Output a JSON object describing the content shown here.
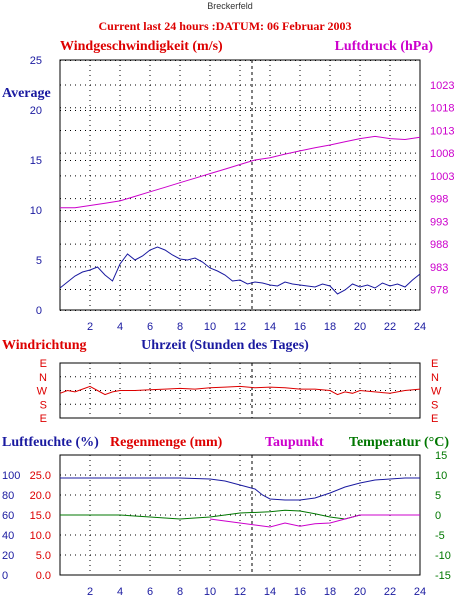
{
  "site": "Breckerfeld",
  "header": "Current last 24 hours :DATUM: 06 Februar 2003",
  "colors": {
    "red": "#dd0000",
    "blue": "#1a1aa0",
    "magenta": "#cc00cc",
    "green": "#007700",
    "grid": "#000000"
  },
  "chart_data": [
    {
      "type": "line",
      "title": "Windgeschwindigkeit (m/s)",
      "left_axis_label": "Windgeschwindigkeit (m/s)",
      "right_axis_label": "Luftdruck (hPa)",
      "average_label": "Average",
      "xlim": [
        0,
        24
      ],
      "x_ticks": [
        2,
        4,
        6,
        8,
        10,
        12,
        14,
        16,
        18,
        20,
        22,
        24
      ],
      "y_left_ticks": [
        0,
        5,
        10,
        15,
        20,
        25
      ],
      "y_left_lim": [
        0,
        25
      ],
      "y_right_ticks": [
        978,
        983,
        988,
        993,
        998,
        1003,
        1008,
        1013,
        1018,
        1023
      ],
      "y_right_lim": [
        973.5,
        1028.5
      ],
      "marker_x": 12.8,
      "series": [
        {
          "name": "Windgeschwindigkeit (m/s)",
          "axis": "left",
          "color": "#1a1aa0",
          "x": [
            0,
            0.5,
            1,
            1.5,
            2,
            2.5,
            3,
            3.5,
            4,
            4.5,
            5,
            5.5,
            6,
            6.5,
            7,
            7.5,
            8,
            8.5,
            9,
            9.5,
            10,
            10.5,
            11,
            11.5,
            12,
            12.5,
            13,
            13.5,
            14,
            14.5,
            15,
            15.5,
            16,
            16.5,
            17,
            17.5,
            18,
            18.5,
            19,
            19.5,
            20,
            20.5,
            21,
            21.5,
            22,
            22.5,
            23,
            23.5,
            24
          ],
          "y": [
            2.2,
            2.8,
            3.4,
            3.8,
            4.0,
            4.3,
            3.5,
            2.9,
            4.6,
            5.6,
            5.0,
            5.4,
            6.0,
            6.3,
            6.0,
            5.5,
            5.1,
            5.0,
            5.2,
            4.8,
            4.2,
            3.9,
            3.5,
            2.9,
            3.0,
            2.6,
            2.8,
            2.7,
            2.5,
            2.4,
            2.8,
            2.6,
            2.5,
            2.4,
            2.3,
            2.6,
            2.4,
            1.6,
            2.0,
            2.6,
            2.3,
            2.5,
            2.2,
            2.7,
            2.4,
            2.6,
            2.3,
            3.0,
            3.6
          ]
        },
        {
          "name": "Luftdruck (hPa)",
          "axis": "right",
          "color": "#cc00cc",
          "x": [
            0,
            1,
            2,
            3,
            4,
            5,
            6,
            7,
            8,
            9,
            10,
            11,
            12,
            13,
            14,
            15,
            16,
            17,
            18,
            19,
            20,
            21,
            22,
            23,
            24
          ],
          "y": [
            996.0,
            996.0,
            996.5,
            997.0,
            997.5,
            998.5,
            999.5,
            1000.5,
            1001.5,
            1002.5,
            1003.5,
            1004.5,
            1005.5,
            1006.5,
            1007.0,
            1007.8,
            1008.5,
            1009.2,
            1009.8,
            1010.5,
            1011.2,
            1011.7,
            1011.2,
            1011.0,
            1011.5
          ]
        }
      ]
    },
    {
      "type": "line",
      "title": "Windrichtung",
      "xlabel": "Uhrzeit (Stunden des Tages)",
      "xlim": [
        0,
        24
      ],
      "y_labels": [
        "E",
        "N",
        "W",
        "S",
        "E"
      ],
      "marker_x": 12.8,
      "series": [
        {
          "name": "Windrichtung",
          "color": "#dd0000",
          "x": [
            0,
            0.5,
            1,
            1.5,
            2,
            2.5,
            3,
            3.5,
            4,
            5,
            6,
            7,
            8,
            9,
            10,
            11,
            12,
            13,
            14,
            15,
            16,
            17,
            18,
            18.5,
            19,
            19.5,
            20,
            21,
            22,
            23,
            24
          ],
          "y": [
            2.2,
            2.0,
            2.1,
            1.9,
            1.7,
            2.0,
            2.3,
            2.1,
            2.0,
            2.0,
            1.95,
            1.9,
            1.85,
            1.9,
            1.8,
            1.75,
            1.7,
            1.8,
            1.75,
            1.8,
            1.9,
            1.9,
            2.0,
            2.3,
            2.1,
            2.2,
            2.0,
            2.1,
            2.2,
            2.0,
            1.9
          ]
        }
      ]
    },
    {
      "type": "line",
      "left_label_1": "Luftfeuchte (%)",
      "left_label_2": "Regenmenge (mm)",
      "right_label_1": "Taupunkt",
      "right_label_2": "Temperatur (°C)",
      "xlim": [
        0,
        24
      ],
      "x_ticks": [
        2,
        4,
        6,
        8,
        10,
        12,
        14,
        16,
        18,
        20,
        22,
        24
      ],
      "y_left_ticks_humidity": [
        0,
        20,
        40,
        60,
        80,
        100
      ],
      "y_left_ticks_rain": [
        "0.0",
        "5.0",
        "10.0",
        "15.0",
        "20.0",
        "25.0"
      ],
      "y_right_ticks": [
        -15,
        -10,
        -5,
        0,
        5,
        10,
        15
      ],
      "y_right_lim": [
        -15,
        15
      ],
      "marker_x": 12.8,
      "series": [
        {
          "name": "Luftfeuchte (%)",
          "color": "#1a1aa0",
          "axis": "left",
          "y_range": [
            0,
            120
          ],
          "x": [
            0,
            2,
            4,
            6,
            8,
            10,
            11,
            12,
            12.5,
            13,
            13.5,
            14,
            15,
            16,
            17,
            18,
            19,
            20,
            21,
            22,
            23,
            24
          ],
          "y": [
            97,
            97,
            97,
            97,
            97,
            96,
            94,
            90,
            88,
            86,
            80,
            76,
            75,
            75,
            77,
            82,
            88,
            92,
            95,
            96,
            97,
            97
          ]
        },
        {
          "name": "Temperatur (°C)",
          "color": "#007700",
          "axis": "right",
          "x": [
            0,
            2,
            4,
            6,
            8,
            10,
            12,
            14,
            15,
            16,
            17,
            18,
            19,
            20,
            22,
            24
          ],
          "y": [
            0,
            0,
            0,
            -0.5,
            -1.0,
            -0.5,
            0.5,
            0.8,
            1.2,
            1.0,
            0.3,
            -0.5,
            -1.0,
            0,
            0,
            0
          ]
        },
        {
          "name": "Taupunkt",
          "color": "#cc00cc",
          "axis": "right",
          "x": [
            10,
            11,
            12,
            13,
            14,
            15,
            16,
            17,
            18,
            19,
            20,
            22,
            24
          ],
          "y": [
            -1,
            -1.5,
            -2,
            -2.5,
            -3.0,
            -2.0,
            -2.8,
            -2.2,
            -2.0,
            -1.0,
            0,
            0,
            0
          ]
        }
      ]
    }
  ]
}
